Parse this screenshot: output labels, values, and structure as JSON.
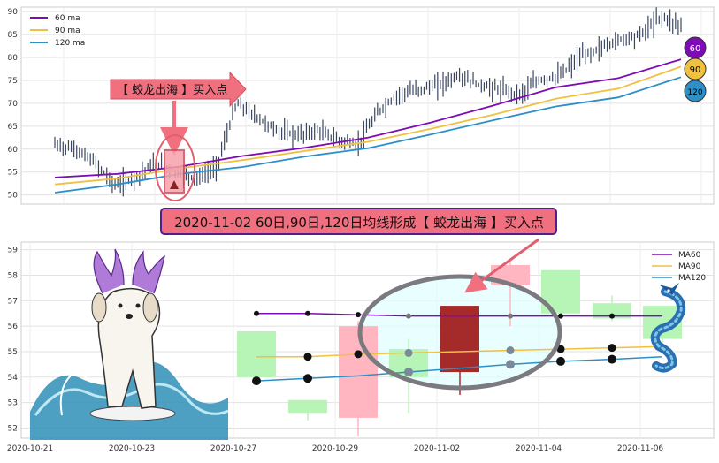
{
  "colors": {
    "ma60": "#7e0bb5",
    "ma90": "#f0c040",
    "ma120": "#2c8fc7",
    "bull": "#b6f5b6",
    "bear": "#ffb6c1",
    "signal_candle": "#a52a2a",
    "callout_bg": "#f07080",
    "banner_bg": "#f07080",
    "banner_border": "#5a1a8a",
    "ellipse": "#7a7a80",
    "ellipse_fill": "#e0ffff"
  },
  "top_chart": {
    "y_ticks": [
      50,
      55,
      60,
      65,
      70,
      75,
      80,
      85,
      90
    ],
    "ylim": [
      48,
      91
    ],
    "legend": [
      {
        "key": "ma60",
        "label": "60 ma"
      },
      {
        "key": "ma90",
        "label": "90 ma"
      },
      {
        "key": "ma120",
        "label": "120 ma"
      }
    ],
    "callout_label": "【 蛟龙出海 】买入点",
    "badges": [
      {
        "key": "ma60",
        "label": "60",
        "text_color": "#ffffff"
      },
      {
        "key": "ma90",
        "label": "90",
        "text_color": "#000000"
      },
      {
        "key": "ma120",
        "label": "120",
        "text_color": "#000000"
      }
    ]
  },
  "banner": {
    "text": "2020-11-02 60日,90日,120日均线形成【 蛟龙出海 】买入点"
  },
  "chart_data": [
    {
      "type": "line",
      "description_scope": "top overview",
      "y_ticks": [
        50,
        55,
        60,
        65,
        70,
        75,
        80,
        85,
        90
      ],
      "series": [
        {
          "name": "60 ma",
          "values": [
            53.8,
            54.6,
            56.2,
            58.5,
            60.3,
            62.5,
            65.8,
            69.5,
            73.5,
            75.5,
            79.6
          ]
        },
        {
          "name": "90 ma",
          "values": [
            52.3,
            53.6,
            55.8,
            57.6,
            59.6,
            61.6,
            64.4,
            67.5,
            71.0,
            73.2,
            78.0
          ]
        },
        {
          "name": "120 ma",
          "values": [
            50.5,
            52.3,
            54.6,
            56.1,
            58.4,
            60.2,
            63.2,
            66.3,
            69.3,
            71.3,
            75.7
          ]
        }
      ],
      "price_path": [
        61,
        60,
        57,
        52,
        54,
        57,
        55,
        53.5,
        56,
        70,
        67,
        64,
        63,
        64,
        62,
        61,
        68,
        72,
        73,
        74,
        76,
        74,
        73,
        72,
        75,
        76,
        80,
        82,
        84,
        85,
        89,
        87
      ]
    },
    {
      "type": "candlestick",
      "description_scope": "bottom zoom",
      "x_tick_labels": [
        "2020-10-21",
        "2020-10-23",
        "2020-10-27",
        "2020-10-29",
        "2020-11-02",
        "2020-11-04",
        "2020-11-06"
      ],
      "y_ticks": [
        52,
        53,
        54,
        55,
        56,
        57,
        58,
        59
      ],
      "ylim": [
        51.6,
        59.3
      ],
      "candles": [
        {
          "open": 54.0,
          "close": 55.8,
          "high": 55.8,
          "low": 54.0
        },
        {
          "open": 52.6,
          "close": 53.1,
          "high": 53.1,
          "low": 52.3
        },
        {
          "open": 56.0,
          "close": 52.4,
          "high": 56.2,
          "low": 51.7
        },
        {
          "open": 54.0,
          "close": 55.1,
          "high": 55.5,
          "low": 52.6
        },
        {
          "open": 54.2,
          "close": 56.8,
          "high": 56.8,
          "low": 53.3,
          "highlight": true
        },
        {
          "open": 58.4,
          "close": 57.6,
          "high": 58.6,
          "low": 56.0
        },
        {
          "open": 56.5,
          "close": 58.2,
          "high": 58.2,
          "low": 56.5
        },
        {
          "open": 56.3,
          "close": 56.9,
          "high": 57.2,
          "low": 56.2
        },
        {
          "open": 55.5,
          "close": 56.8,
          "high": 56.8,
          "low": 55.0
        }
      ],
      "series": [
        {
          "name": "MA60",
          "values": [
            56.5,
            56.5,
            56.45,
            56.4,
            56.4,
            56.4,
            56.4,
            56.4,
            56.4
          ]
        },
        {
          "name": "MA90",
          "values": [
            54.8,
            54.8,
            54.9,
            54.95,
            55.0,
            55.05,
            55.1,
            55.15,
            55.2
          ]
        },
        {
          "name": "MA120",
          "values": [
            53.85,
            53.95,
            54.05,
            54.2,
            54.35,
            54.5,
            54.62,
            54.7,
            54.8
          ]
        }
      ],
      "legend": [
        {
          "key": "ma60",
          "label": "MA60"
        },
        {
          "key": "ma90",
          "label": "MA90"
        },
        {
          "key": "ma120",
          "label": "MA120"
        }
      ]
    }
  ]
}
